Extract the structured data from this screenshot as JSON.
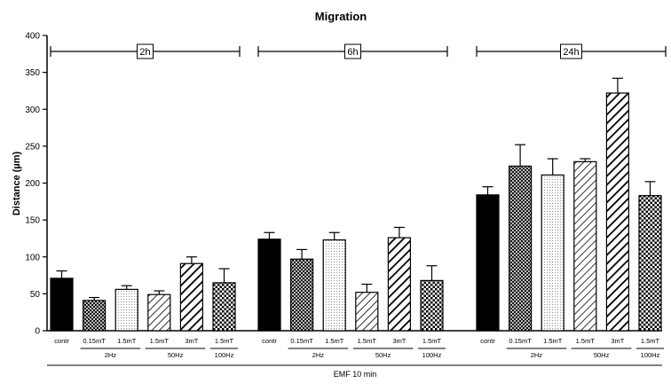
{
  "chart_data": {
    "type": "bar",
    "title": "Migration",
    "ylabel": "Distance (µm)",
    "xlabel": "EMF 10 min",
    "ylim": [
      0,
      400
    ],
    "yticks": [
      0,
      50,
      100,
      150,
      200,
      250,
      300,
      350,
      400
    ],
    "categories": [
      "contr",
      "0.15mT",
      "1.5mT",
      "1.5mT",
      "3mT",
      "1.5mT"
    ],
    "patterns": [
      "solid",
      "crosshatch",
      "dots",
      "diag-thin",
      "diag-thick",
      "check"
    ],
    "subgroups": [
      {
        "label": "2Hz",
        "from": 1,
        "to": 2
      },
      {
        "label": "50Hz",
        "from": 3,
        "to": 4
      },
      {
        "label": "100Hz",
        "from": 5,
        "to": 5
      }
    ],
    "groups": [
      {
        "name": "2h",
        "values": [
          71,
          41,
          56,
          49,
          91,
          65
        ],
        "errors": [
          10,
          4,
          5,
          5,
          9,
          19
        ]
      },
      {
        "name": "6h",
        "values": [
          124,
          97,
          123,
          52,
          126,
          68
        ],
        "errors": [
          9,
          13,
          10,
          11,
          14,
          20
        ]
      },
      {
        "name": "24h",
        "values": [
          184,
          223,
          211,
          229,
          322,
          183
        ],
        "errors": [
          11,
          29,
          22,
          4,
          20,
          19
        ]
      }
    ]
  }
}
